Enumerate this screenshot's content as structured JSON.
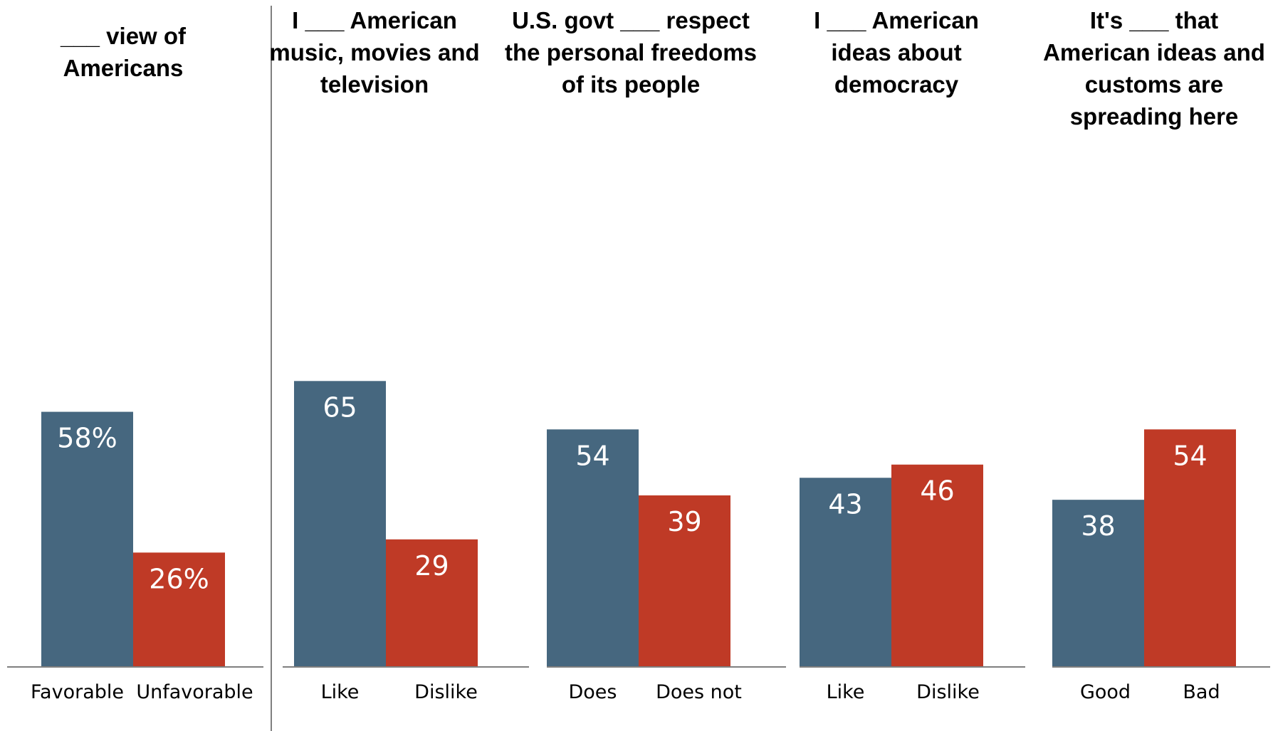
{
  "colors": {
    "positive": "#46677f",
    "negative": "#bf3a26",
    "axis": "#7f7f7f",
    "divider": "#7f7f7f"
  },
  "chart_data": [
    {
      "type": "bar",
      "title": "___ view of Americans",
      "categories": [
        "Favorable",
        "Unfavorable"
      ],
      "values": [
        58,
        26
      ],
      "value_labels": [
        "58%",
        "26%"
      ],
      "ylim": [
        0,
        100
      ],
      "grid": false
    },
    {
      "type": "bar",
      "title": "I ___ American music, movies and television",
      "categories": [
        "Like",
        "Dislike"
      ],
      "values": [
        65,
        29
      ],
      "value_labels": [
        "65",
        "29"
      ],
      "ylim": [
        0,
        100
      ],
      "grid": false
    },
    {
      "type": "bar",
      "title": "U.S. govt ___ respect the personal freedoms of its people",
      "categories": [
        "Does",
        "Does not"
      ],
      "values": [
        54,
        39
      ],
      "value_labels": [
        "54",
        "39"
      ],
      "ylim": [
        0,
        100
      ],
      "grid": false
    },
    {
      "type": "bar",
      "title": "I ___ American ideas about democracy",
      "categories": [
        "Like",
        "Dislike"
      ],
      "values": [
        43,
        46
      ],
      "value_labels": [
        "43",
        "46"
      ],
      "ylim": [
        0,
        100
      ],
      "grid": false
    },
    {
      "type": "bar",
      "title": "It's ___ that American ideas and customs are spreading here",
      "categories": [
        "Good",
        "Bad"
      ],
      "values": [
        38,
        54
      ],
      "value_labels": [
        "38",
        "54"
      ],
      "ylim": [
        0,
        100
      ],
      "grid": false
    }
  ]
}
